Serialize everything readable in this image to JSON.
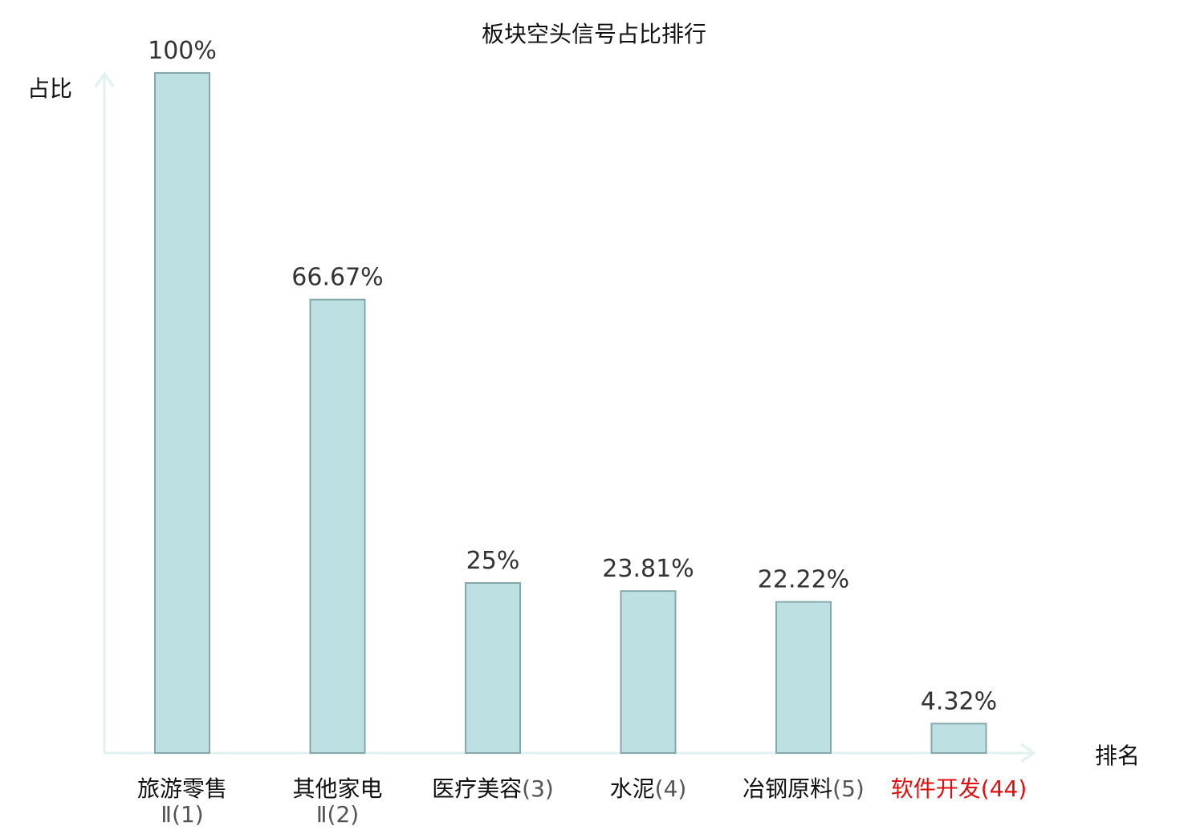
{
  "chart_data": {
    "type": "bar",
    "title": "板块空头信号占比排行",
    "ylabel": "占比",
    "xlabel": "排名",
    "ylim": [
      0,
      100
    ],
    "grid": false,
    "bar_fill": "#bde1e3",
    "bar_stroke": "#86a8ab",
    "axis_color": "#dff2ef",
    "highlight_color": "#e01010",
    "categories": [
      {
        "name_line1": "旅游零售",
        "name_line2": "Ⅱ(1)",
        "highlight": false
      },
      {
        "name_line1": "其他家电",
        "name_line2": "Ⅱ(2)",
        "highlight": false
      },
      {
        "name_line1": "医疗美容",
        "rank": "(3)",
        "highlight": false
      },
      {
        "name_line1": "水泥",
        "rank": "(4)",
        "highlight": false
      },
      {
        "name_line1": "冶钢原料",
        "rank": "(5)",
        "highlight": false
      },
      {
        "name_line1": "软件开发",
        "rank": "(44)",
        "highlight": true
      }
    ],
    "values": [
      100,
      66.67,
      25,
      23.81,
      22.22,
      4.32
    ],
    "value_labels": [
      "100%",
      "66.67%",
      "25%",
      "23.81%",
      "22.22%",
      "4.32%"
    ]
  }
}
